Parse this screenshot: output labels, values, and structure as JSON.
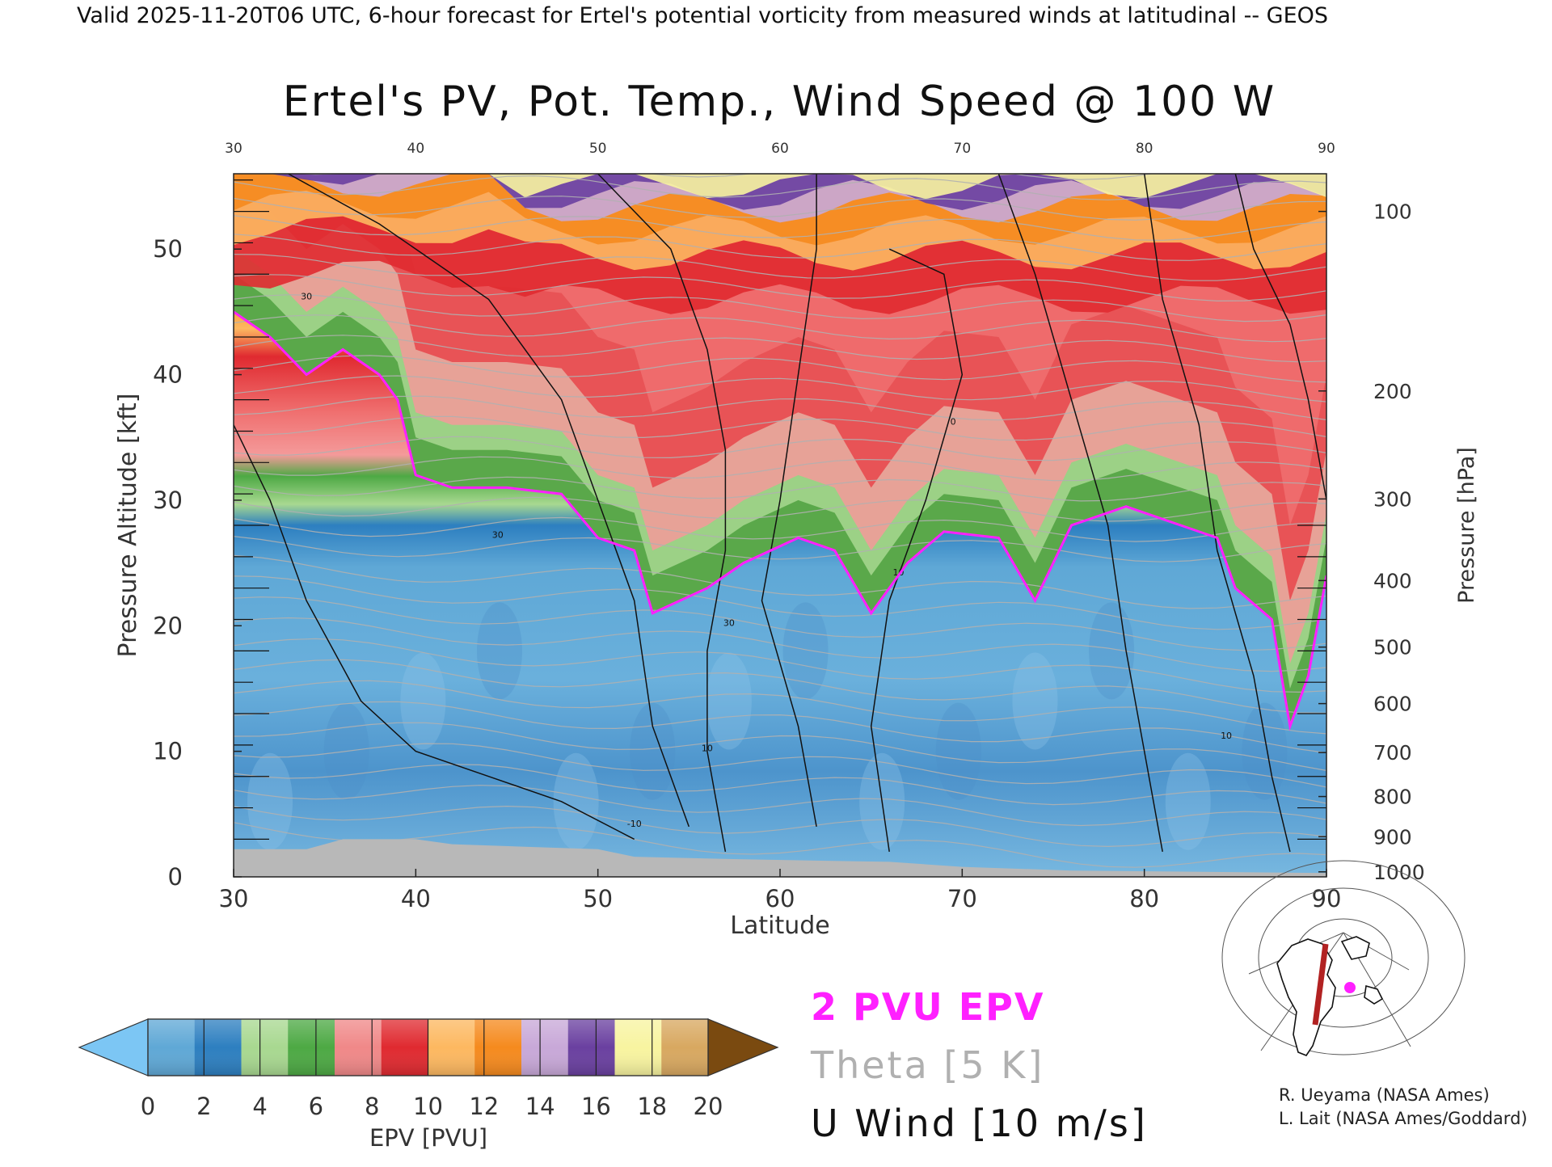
{
  "header": {
    "valid_line": "Valid 2025-11-20T06 UTC, 6-hour forecast for Ertel's potential vorticity from measured winds at latitudinal -- GEOS"
  },
  "chart_data": {
    "type": "heatmap",
    "title": "Ertel's PV, Pot. Temp., Wind Speed @ 100 W",
    "xlabel": "Latitude",
    "ylabel_left": "Pressure Altitude [kft]",
    "ylabel_right": "Pressure [hPa]",
    "xlim": [
      30,
      90
    ],
    "ylim_kft": [
      0,
      56
    ],
    "x_ticks": [
      "30",
      "40",
      "50",
      "60",
      "70",
      "80",
      "90"
    ],
    "y_ticks_kft": [
      "0",
      "10",
      "20",
      "30",
      "40",
      "50"
    ],
    "pressure_ticks": [
      {
        "label": "100",
        "kft": 53.0
      },
      {
        "label": "200",
        "kft": 38.7
      },
      {
        "label": "300",
        "kft": 30.1
      },
      {
        "label": "400",
        "kft": 23.6
      },
      {
        "label": "500",
        "kft": 18.3
      },
      {
        "label": "600",
        "kft": 13.8
      },
      {
        "label": "700",
        "kft": 9.9
      },
      {
        "label": "800",
        "kft": 6.4
      },
      {
        "label": "900",
        "kft": 3.2
      },
      {
        "label": "1000",
        "kft": 0.4
      }
    ],
    "tropopause_2pvu_kft": [
      {
        "lat": 30,
        "kft": 45
      },
      {
        "lat": 32,
        "kft": 43
      },
      {
        "lat": 34,
        "kft": 40
      },
      {
        "lat": 36,
        "kft": 42
      },
      {
        "lat": 38,
        "kft": 40
      },
      {
        "lat": 39,
        "kft": 38
      },
      {
        "lat": 40,
        "kft": 32
      },
      {
        "lat": 42,
        "kft": 31
      },
      {
        "lat": 45,
        "kft": 31
      },
      {
        "lat": 48,
        "kft": 30.5
      },
      {
        "lat": 50,
        "kft": 27
      },
      {
        "lat": 52,
        "kft": 26
      },
      {
        "lat": 53,
        "kft": 21
      },
      {
        "lat": 56,
        "kft": 23
      },
      {
        "lat": 58,
        "kft": 25
      },
      {
        "lat": 61,
        "kft": 27
      },
      {
        "lat": 63,
        "kft": 26
      },
      {
        "lat": 65,
        "kft": 21
      },
      {
        "lat": 67,
        "kft": 25
      },
      {
        "lat": 69,
        "kft": 27.5
      },
      {
        "lat": 72,
        "kft": 27
      },
      {
        "lat": 74,
        "kft": 22
      },
      {
        "lat": 76,
        "kft": 28
      },
      {
        "lat": 79,
        "kft": 29.5
      },
      {
        "lat": 82,
        "kft": 28
      },
      {
        "lat": 84,
        "kft": 27
      },
      {
        "lat": 85,
        "kft": 23
      },
      {
        "lat": 87,
        "kft": 20.5
      },
      {
        "lat": 88,
        "kft": 12
      },
      {
        "lat": 89,
        "kft": 16
      },
      {
        "lat": 90,
        "kft": 24
      }
    ],
    "contour_labels": [
      "30",
      "10",
      "0",
      "-10"
    ],
    "colorbar": {
      "label": "EPV [PVU]",
      "ticks": [
        "0",
        "2",
        "4",
        "6",
        "8",
        "10",
        "12",
        "14",
        "16",
        "18",
        "20"
      ],
      "colors": [
        "#5fa8d6",
        "#2d7fc0",
        "#a8d890",
        "#4da944",
        "#f08888",
        "#e02a30",
        "#fdb860",
        "#f58a1e",
        "#c8a8d8",
        "#6a40a0",
        "#f8f4a0",
        "#d8a860"
      ],
      "under_color": "#7cc6f4",
      "over_color": "#7a4a10"
    }
  },
  "legend": {
    "pv_label": "2 PVU EPV",
    "pv_color": "#ff20ff",
    "theta_label": "Theta [5 K]",
    "theta_color": "#b0b0b0",
    "wind_label": "U Wind [10 m/s]",
    "wind_color": "#111111"
  },
  "map_inset": {
    "icon": "polar-map-cross-section-icon",
    "line_color": "#b22222",
    "dot_color": "#ff20ff"
  },
  "credits": {
    "line1": "R. Ueyama (NASA Ames)",
    "line2": "L. Lait (NASA Ames/Goddard)"
  }
}
